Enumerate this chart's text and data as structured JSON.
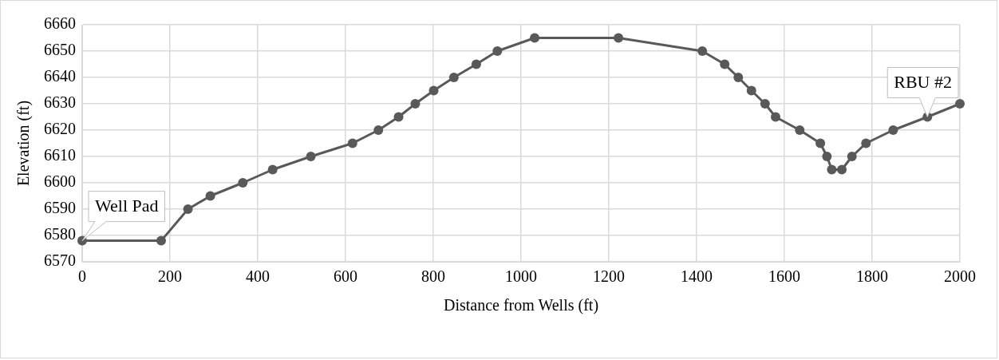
{
  "chart_data": {
    "type": "line",
    "xlabel": "Distance from Wells (ft)",
    "ylabel": "Elevation (ft)",
    "x": [
      0,
      180,
      241,
      292,
      366,
      434,
      521,
      616,
      675,
      721,
      759,
      801,
      847,
      898,
      946,
      1031,
      1222,
      1413,
      1464,
      1495,
      1525,
      1556,
      1580,
      1635,
      1682,
      1697,
      1708,
      1731,
      1754,
      1786,
      1848,
      1926,
      2000
    ],
    "series": [
      {
        "color": "#595959",
        "values": [
          6578,
          6578,
          6590,
          6595,
          6600,
          6605,
          6610,
          6615,
          6620,
          6625,
          6630,
          6635,
          6640,
          6645,
          6650,
          6655,
          6655,
          6650,
          6645,
          6640,
          6635,
          6630,
          6625,
          6620,
          6615,
          6610,
          6605,
          6605,
          6610,
          6615,
          6620,
          6625,
          6630
        ]
      }
    ],
    "xlim": [
      0,
      2000
    ],
    "xticks": [
      0,
      200,
      400,
      600,
      800,
      1000,
      1200,
      1400,
      1600,
      1800,
      2000
    ],
    "ylim": [
      6570,
      6660
    ],
    "yticks": [
      6570,
      6580,
      6590,
      6600,
      6610,
      6620,
      6630,
      6640,
      6650,
      6660
    ],
    "grid": true,
    "marker": "circle",
    "line_style": "solid",
    "legend": false,
    "annotations": [
      {
        "text": "Well Pad",
        "x": 0,
        "y": 6578
      },
      {
        "text": "RBU #2",
        "x": 1926,
        "y": 6625
      }
    ]
  }
}
